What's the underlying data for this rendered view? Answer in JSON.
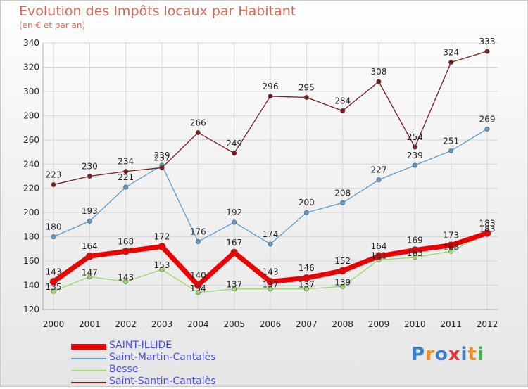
{
  "page": {
    "title": "Evolution des Impôts locaux par Habitant",
    "subtitle": "(en € et par an)",
    "brand": "Proxiti",
    "brand_colors": [
      "#3a7fd0",
      "#f08a24",
      "#3a7fd0",
      "#e03a3a",
      "#3a7fd0",
      "#f08a24",
      "#4caf50"
    ]
  },
  "chart_data": {
    "type": "line",
    "title": "Evolution des Impôts locaux par Habitant",
    "subtitle": "(en € et par an)",
    "x": [
      "2000",
      "2001",
      "2002",
      "2003",
      "2004",
      "2005",
      "2006",
      "2007",
      "2008",
      "2009",
      "2010",
      "2011",
      "2012"
    ],
    "ylim": [
      120,
      340
    ],
    "yticks": [
      120,
      140,
      160,
      180,
      200,
      220,
      240,
      260,
      280,
      300,
      320,
      340
    ],
    "grid": true,
    "legend": "bottom-left",
    "series": [
      {
        "name": "SAINT-ILLIDE",
        "color": "#ee0000",
        "width": 7,
        "marker": 5,
        "values": [
          143,
          164,
          168,
          172,
          140,
          167,
          143,
          146,
          152,
          164,
          169,
          173,
          183
        ]
      },
      {
        "name": "Saint-Martin-Cantalès",
        "color": "#5b9bd0",
        "width": 1.3,
        "marker": 3.2,
        "values": [
          180,
          193,
          221,
          239,
          176,
          192,
          174,
          200,
          208,
          227,
          239,
          251,
          269
        ]
      },
      {
        "name": "Besse",
        "color": "#99d86a",
        "width": 1.3,
        "marker": 3.2,
        "values": [
          135,
          147,
          143,
          153,
          134,
          137,
          137,
          137,
          139,
          161,
          163,
          168,
          183
        ]
      },
      {
        "name": "Saint-Santin-Cantalès",
        "color": "#7a1c1c",
        "width": 1.3,
        "marker": 3.2,
        "values": [
          223,
          230,
          234,
          237,
          266,
          249,
          296,
          295,
          284,
          308,
          254,
          324,
          333
        ]
      }
    ]
  }
}
